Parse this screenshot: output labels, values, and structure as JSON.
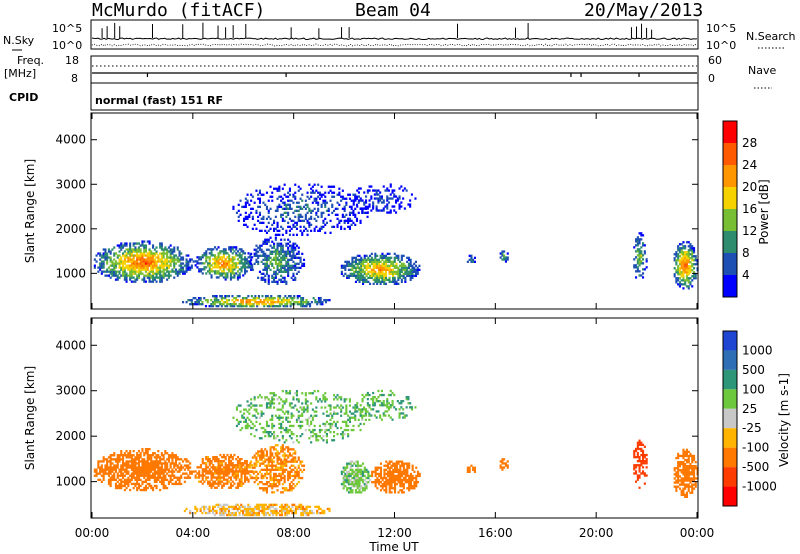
{
  "header": {
    "station": "McMurdo (fitACF)",
    "beam": "Beam 04",
    "date": "20/May/2013"
  },
  "strips": {
    "nsky_label": "N.Sky",
    "nsky_ticks": [
      "10^5",
      "10^0"
    ],
    "nsearch_label": "N.Search",
    "nsearch_ticks": [
      "10^5",
      "10^0"
    ],
    "freq_label": "Freq.",
    "freq_unit": "[MHz]",
    "freq_ticks": [
      "18",
      "8"
    ],
    "nave_label": "Nave",
    "nave_ticks": [
      "60",
      "0"
    ],
    "cpid_label": "CPID",
    "cpid_value": "normal (fast) 151 RF"
  },
  "colors": {
    "power_scale": [
      "#0000ff",
      "#1e50b4",
      "#2d8c6e",
      "#78be32",
      "#f5d200",
      "#ff9600",
      "#ff5a00",
      "#ff0000"
    ],
    "velocity_scale": [
      "#1e46d2",
      "#2d6eb4",
      "#2d9678",
      "#6ec83c",
      "#c8c8c8",
      "#ffb400",
      "#ff7800",
      "#ff3c00",
      "#ff0000"
    ]
  },
  "chart_data": [
    {
      "type": "heatmap",
      "panel": "power",
      "xlabel": "",
      "ylabel": "Slant Range [km]",
      "yticks": [
        "1000",
        "2000",
        "3000",
        "4000"
      ],
      "ylim": [
        200,
        4600
      ],
      "xlim_hours": [
        0,
        24
      ],
      "colorbar": {
        "label": "Power [dB]",
        "ticks": [
          "4",
          "8",
          "12",
          "16",
          "20",
          "24",
          "28"
        ],
        "range": [
          0,
          32
        ]
      },
      "echo_regions": [
        {
          "t0": 0.0,
          "t1": 4.0,
          "r0": 750,
          "r1": 1700,
          "peak": 27,
          "sharp": 1.0
        },
        {
          "t0": 4.0,
          "t1": 6.4,
          "r0": 800,
          "r1": 1600,
          "peak": 24,
          "sharp": 0.9
        },
        {
          "t0": 6.2,
          "t1": 8.4,
          "r0": 700,
          "r1": 1800,
          "peak": 14,
          "sharp": 0.7
        },
        {
          "t0": 3.5,
          "t1": 9.5,
          "r0": 200,
          "r1": 500,
          "peak": 26,
          "sharp": 0.9
        },
        {
          "t0": 9.8,
          "t1": 13.0,
          "r0": 700,
          "r1": 1450,
          "peak": 24,
          "sharp": 1.0
        },
        {
          "t0": 5.5,
          "t1": 11.0,
          "r0": 1800,
          "r1": 3000,
          "peak": 8,
          "sharp": 0.25
        },
        {
          "t0": 10.2,
          "t1": 12.8,
          "r0": 2300,
          "r1": 3000,
          "peak": 6,
          "sharp": 0.3
        },
        {
          "t0": 14.8,
          "t1": 15.2,
          "r0": 1150,
          "r1": 1400,
          "peak": 12,
          "sharp": 0.8
        },
        {
          "t0": 16.1,
          "t1": 16.5,
          "r0": 1200,
          "r1": 1500,
          "peak": 12,
          "sharp": 0.8
        },
        {
          "t0": 21.4,
          "t1": 22.0,
          "r0": 800,
          "r1": 1900,
          "peak": 16,
          "sharp": 0.6
        },
        {
          "t0": 23.0,
          "t1": 24.0,
          "r0": 600,
          "r1": 1700,
          "peak": 28,
          "sharp": 1.0
        }
      ]
    },
    {
      "type": "heatmap",
      "panel": "velocity",
      "xlabel": "Time UT",
      "ylabel": "Slant Range [km]",
      "yticks": [
        "1000",
        "2000",
        "3000",
        "4000"
      ],
      "xticks": [
        "00:00",
        "04:00",
        "08:00",
        "12:00",
        "16:00",
        "20:00",
        "00:00"
      ],
      "ylim": [
        200,
        4600
      ],
      "xlim_hours": [
        0,
        24
      ],
      "colorbar": {
        "label": "Velocity [m s-1]",
        "ticks": [
          "1000",
          "500",
          "100",
          "25",
          "-25",
          "-100",
          "-500",
          "-1000"
        ]
      },
      "echo_regions": [
        {
          "t0": 0.0,
          "t1": 4.0,
          "r0": 750,
          "r1": 1700,
          "vel": -180,
          "sharp": 1.0
        },
        {
          "t0": 4.0,
          "t1": 6.4,
          "r0": 800,
          "r1": 1600,
          "vel": -150,
          "sharp": 0.9
        },
        {
          "t0": 6.2,
          "t1": 8.4,
          "r0": 700,
          "r1": 1800,
          "vel": -120,
          "sharp": 0.7
        },
        {
          "t0": 3.5,
          "t1": 9.5,
          "r0": 200,
          "r1": 500,
          "vel": -60,
          "sharp": 0.9
        },
        {
          "t0": 9.8,
          "t1": 11.0,
          "r0": 700,
          "r1": 1450,
          "vel": 60,
          "sharp": 1.0
        },
        {
          "t0": 11.0,
          "t1": 13.0,
          "r0": 700,
          "r1": 1450,
          "vel": -200,
          "sharp": 1.0
        },
        {
          "t0": 5.5,
          "t1": 11.0,
          "r0": 1800,
          "r1": 3000,
          "vel": 80,
          "sharp": 0.25
        },
        {
          "t0": 10.2,
          "t1": 12.8,
          "r0": 2300,
          "r1": 3000,
          "vel": 90,
          "sharp": 0.3
        },
        {
          "t0": 14.8,
          "t1": 15.2,
          "r0": 1150,
          "r1": 1400,
          "vel": -150,
          "sharp": 0.8
        },
        {
          "t0": 16.1,
          "t1": 16.5,
          "r0": 1200,
          "r1": 1500,
          "vel": -150,
          "sharp": 0.8
        },
        {
          "t0": 21.4,
          "t1": 22.0,
          "r0": 800,
          "r1": 1900,
          "vel": -700,
          "sharp": 0.6
        },
        {
          "t0": 23.0,
          "t1": 24.0,
          "r0": 600,
          "r1": 1700,
          "vel": -250,
          "sharp": 1.0
        }
      ]
    }
  ]
}
